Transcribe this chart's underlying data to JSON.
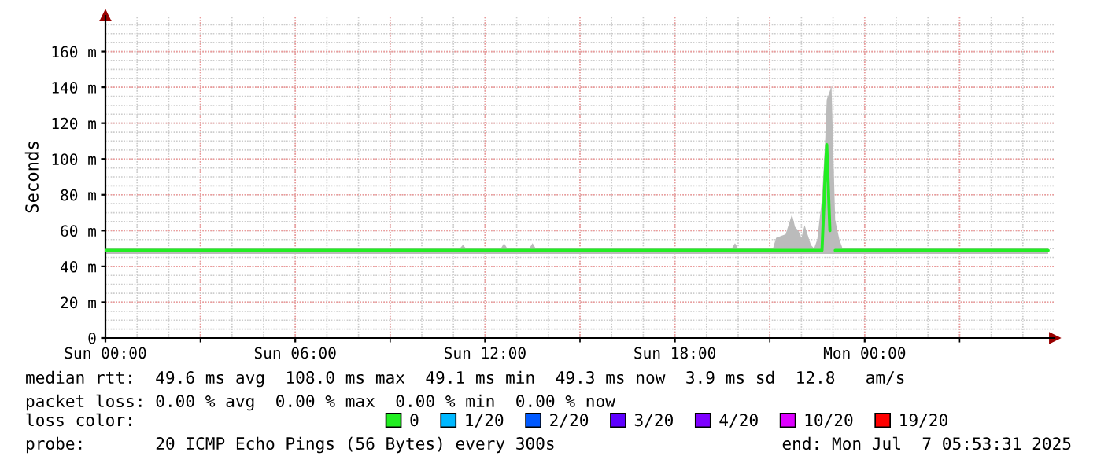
{
  "chart_data": {
    "type": "line",
    "ylabel": "Seconds",
    "xlim": [
      "2025-07-06T00:00",
      "2025-07-07T06:00"
    ],
    "ylim": [
      0,
      180
    ],
    "xticks": [
      {
        "value": "2025-07-06T00:00",
        "label": "Sun 00:00"
      },
      {
        "value": "2025-07-06T03:00",
        "label": null
      },
      {
        "value": "2025-07-06T06:00",
        "label": "Sun 06:00"
      },
      {
        "value": "2025-07-06T09:00",
        "label": null
      },
      {
        "value": "2025-07-06T12:00",
        "label": "Sun 12:00"
      },
      {
        "value": "2025-07-06T15:00",
        "label": null
      },
      {
        "value": "2025-07-06T18:00",
        "label": "Sun 18:00"
      },
      {
        "value": "2025-07-06T21:00",
        "label": null
      },
      {
        "value": "2025-07-07T00:00",
        "label": "Mon 00:00"
      },
      {
        "value": "2025-07-07T03:00",
        "label": null
      }
    ],
    "yticks": [
      0,
      {
        "value": 20,
        "label": "20 m"
      },
      {
        "value": 40,
        "label": "40 m"
      },
      {
        "value": 60,
        "label": "60 m"
      },
      {
        "value": 80,
        "label": "80 m"
      },
      {
        "value": 100,
        "label": "100 m"
      },
      {
        "value": 120,
        "label": "120 m"
      },
      {
        "value": 140,
        "label": "140 m"
      },
      {
        "value": 160,
        "label": "160 m"
      }
    ],
    "grid": true,
    "legend": "bottom",
    "series": [
      {
        "name": "0",
        "color": "#22ee22",
        "x": [
          "2025-07-06T00:00",
          "2025-07-06T11:12",
          "2025-07-06T11:18",
          "2025-07-06T11:24",
          "2025-07-06T12:30",
          "2025-07-06T12:36",
          "2025-07-06T12:42",
          "2025-07-06T13:24",
          "2025-07-06T13:30",
          "2025-07-06T13:36",
          "2025-07-06T19:48",
          "2025-07-06T19:54",
          "2025-07-06T20:00",
          "2025-07-06T21:06",
          "2025-07-06T21:12",
          "2025-07-06T21:30",
          "2025-07-06T21:42",
          "2025-07-06T21:48",
          "2025-07-06T21:54",
          "2025-07-06T22:00",
          "2025-07-06T22:06",
          "2025-07-06T22:18",
          "2025-07-06T22:24",
          "2025-07-06T22:30",
          "2025-07-06T22:39",
          "2025-07-06T22:45",
          "2025-07-06T22:48",
          "2025-07-06T22:54",
          "2025-07-06T22:57",
          "2025-07-06T23:04",
          "2025-07-06T23:12",
          "2025-07-06T23:18",
          "2025-07-07T05:48"
        ],
        "values": [
          49,
          49,
          49,
          49,
          49,
          49,
          49,
          49,
          49,
          49,
          49,
          49,
          49,
          49,
          49,
          49,
          49,
          49,
          49,
          49,
          49,
          49,
          49,
          49,
          49,
          91,
          108,
          60,
          null,
          49,
          49,
          49,
          49
        ],
        "upper": [
          50,
          50,
          52,
          50,
          50,
          53,
          50,
          50,
          53,
          50,
          50,
          53,
          50,
          50,
          56,
          58,
          69,
          62,
          60,
          56,
          63,
          52,
          50,
          55,
          78,
          110,
          133,
          138,
          141,
          66,
          55,
          50,
          50
        ],
        "lower": [
          47,
          47,
          47,
          47,
          47,
          47,
          47,
          47,
          47,
          47,
          47,
          47,
          47,
          47,
          47,
          47,
          47,
          47,
          47,
          47,
          47,
          47,
          47,
          47,
          47,
          47,
          47,
          47,
          47,
          47,
          47,
          47,
          47
        ]
      },
      {
        "name": "1/20",
        "color": "#00b8ff"
      },
      {
        "name": "2/20",
        "color": "#0059ff"
      },
      {
        "name": "3/20",
        "color": "#5e00ff"
      },
      {
        "name": "4/20",
        "color": "#7e00ff"
      },
      {
        "name": "10/20",
        "color": "#dd00ff"
      },
      {
        "name": "19/20",
        "color": "#ff0000"
      }
    ],
    "annotations": [
      "median rtt:  49.6 ms avg  108.0 ms max  49.1 ms min  49.3 ms now  3.9 ms sd  12.8   am/s",
      "packet loss: 0.00 % avg  0.00 % max  0.00 % min  0.00 % now",
      "loss color:",
      "probe:       20 ICMP Echo Pings (56 Bytes) every 300s",
      "end: Mon Jul  7 05:53:31 2025"
    ]
  }
}
